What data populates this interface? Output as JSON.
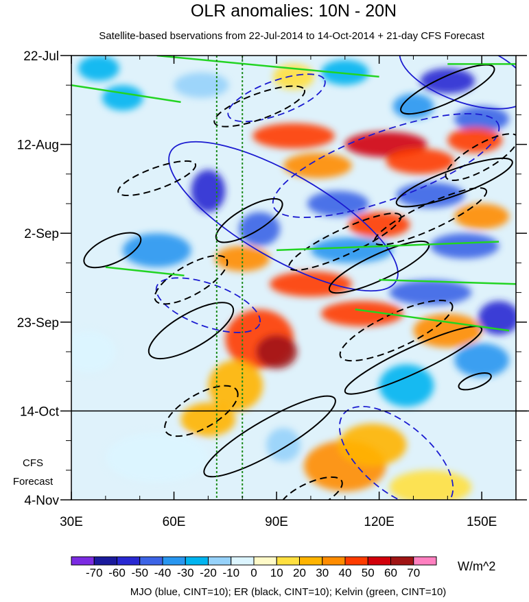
{
  "chart_data": {
    "type": "heatmap",
    "title": "OLR anomalies: 10N - 20N",
    "subtitle": "Satellite-based bservations from 22-Jul-2014 to 14-Oct-2014 + 21-day CFS Forecast",
    "x_ticks": [
      {
        "value": 30,
        "label": "30E"
      },
      {
        "value": 60,
        "label": "60E"
      },
      {
        "value": 90,
        "label": "90E"
      },
      {
        "value": 120,
        "label": "120E"
      },
      {
        "value": 150,
        "label": "150E"
      }
    ],
    "xlim": [
      30,
      160
    ],
    "y_ticks": [
      {
        "value": 0,
        "label": "22-Jul"
      },
      {
        "value": 21,
        "label": "12-Aug"
      },
      {
        "value": 42,
        "label": "2-Sep"
      },
      {
        "value": 63,
        "label": "23-Sep"
      },
      {
        "value": 84,
        "label": "14-Oct"
      },
      {
        "value": 105,
        "label": "4-Nov"
      }
    ],
    "ylim_days": [
      0,
      105
    ],
    "forecast_start_day": 84,
    "forecast_label_1": "CFS",
    "forecast_label_2": "Forecast",
    "reference_lines_lon": [
      72.5,
      80
    ],
    "colorbar": {
      "colors": [
        "#7b2be2",
        "#1a1a9c",
        "#2828d2",
        "#3c64e6",
        "#2896f0",
        "#00b4f0",
        "#96d2fa",
        "#dcf5ff",
        "#fffac8",
        "#ffe040",
        "#ffb400",
        "#ff8c00",
        "#ff3c00",
        "#d2000a",
        "#a01414",
        "#ff80c0"
      ],
      "labels": [
        "-70",
        "-60",
        "-50",
        "-40",
        "-30",
        "-20",
        "-10",
        "0",
        "10",
        "20",
        "30",
        "40",
        "50",
        "60",
        "70"
      ],
      "units": "W/m^2"
    },
    "anomaly_blobs": [
      {
        "lon": 38,
        "day": 3,
        "value": -25,
        "rlon": 6,
        "rday": 3
      },
      {
        "lon": 45,
        "day": 10,
        "value": -30,
        "rlon": 6,
        "rday": 3
      },
      {
        "lon": 68,
        "day": 7,
        "value": -20,
        "rlon": 8,
        "rday": 3
      },
      {
        "lon": 95,
        "day": 5,
        "value": 15,
        "rlon": 6,
        "rday": 3
      },
      {
        "lon": 110,
        "day": 4,
        "value": -30,
        "rlon": 7,
        "rday": 3
      },
      {
        "lon": 140,
        "day": 6,
        "value": -55,
        "rlon": 8,
        "rday": 3
      },
      {
        "lon": 130,
        "day": 12,
        "value": -40,
        "rlon": 6,
        "rday": 3
      },
      {
        "lon": 150,
        "day": 15,
        "value": -45,
        "rlon": 8,
        "rday": 3
      },
      {
        "lon": 95,
        "day": 19,
        "value": 45,
        "rlon": 12,
        "rday": 3
      },
      {
        "lon": 122,
        "day": 21,
        "value": 50,
        "rlon": 12,
        "rday": 3
      },
      {
        "lon": 148,
        "day": 20,
        "value": 40,
        "rlon": 8,
        "rday": 3
      },
      {
        "lon": 102,
        "day": 26,
        "value": 35,
        "rlon": 10,
        "rday": 3
      },
      {
        "lon": 132,
        "day": 25,
        "value": 45,
        "rlon": 10,
        "rday": 3
      },
      {
        "lon": 70,
        "day": 32,
        "value": -55,
        "rlon": 5,
        "rday": 5
      },
      {
        "lon": 85,
        "day": 41,
        "value": -50,
        "rlon": 6,
        "rday": 4
      },
      {
        "lon": 108,
        "day": 35,
        "value": -45,
        "rlon": 9,
        "rday": 3
      },
      {
        "lon": 135,
        "day": 33,
        "value": -45,
        "rlon": 10,
        "rday": 3
      },
      {
        "lon": 120,
        "day": 40,
        "value": 40,
        "rlon": 9,
        "rday": 3
      },
      {
        "lon": 150,
        "day": 38,
        "value": 30,
        "rlon": 8,
        "rday": 3
      },
      {
        "lon": 55,
        "day": 46,
        "value": -35,
        "rlon": 10,
        "rday": 4
      },
      {
        "lon": 80,
        "day": 48,
        "value": 35,
        "rlon": 8,
        "rday": 3
      },
      {
        "lon": 112,
        "day": 46,
        "value": -40,
        "rlon": 12,
        "rday": 3
      },
      {
        "lon": 145,
        "day": 45,
        "value": -45,
        "rlon": 10,
        "rday": 3
      },
      {
        "lon": 100,
        "day": 54,
        "value": 40,
        "rlon": 12,
        "rday": 3
      },
      {
        "lon": 135,
        "day": 56,
        "value": -50,
        "rlon": 12,
        "rday": 3
      },
      {
        "lon": 115,
        "day": 61,
        "value": 45,
        "rlon": 12,
        "rday": 3
      },
      {
        "lon": 140,
        "day": 65,
        "value": 35,
        "rlon": 10,
        "rday": 4
      },
      {
        "lon": 155,
        "day": 62,
        "value": -55,
        "rlon": 6,
        "rday": 4
      },
      {
        "lon": 85,
        "day": 67,
        "value": 45,
        "rlon": 10,
        "rday": 7
      },
      {
        "lon": 90,
        "day": 70,
        "value": 60,
        "rlon": 6,
        "rday": 4
      },
      {
        "lon": 78,
        "day": 78,
        "value": 25,
        "rlon": 8,
        "rday": 6
      },
      {
        "lon": 35,
        "day": 70,
        "value": -10,
        "rlon": 8,
        "rday": 5
      },
      {
        "lon": 150,
        "day": 72,
        "value": -40,
        "rlon": 8,
        "rday": 4
      },
      {
        "lon": 128,
        "day": 78,
        "value": -25,
        "rlon": 8,
        "rday": 5
      },
      {
        "lon": 70,
        "day": 86,
        "value": 25,
        "rlon": 8,
        "rday": 4
      },
      {
        "lon": 110,
        "day": 97,
        "value": 35,
        "rlon": 12,
        "rday": 6
      },
      {
        "lon": 118,
        "day": 92,
        "value": 20,
        "rlon": 10,
        "rday": 5
      },
      {
        "lon": 55,
        "day": 95,
        "value": -10,
        "rlon": 15,
        "rday": 6
      },
      {
        "lon": 92,
        "day": 92,
        "value": -15,
        "rlon": 5,
        "rday": 4
      },
      {
        "lon": 135,
        "day": 102,
        "value": 10,
        "rlon": 12,
        "rday": 4
      }
    ],
    "contours": [
      {
        "kind": "mjo",
        "style": "solid",
        "lon": 92,
        "day": 38,
        "rlon": 38,
        "rday": 10,
        "angle": 30
      },
      {
        "kind": "mjo",
        "style": "solid",
        "lon": 145,
        "day": 4,
        "rlon": 20,
        "rday": 7,
        "angle": 20
      },
      {
        "kind": "mjo",
        "style": "dashed",
        "lon": 122,
        "day": 26,
        "rlon": 35,
        "rday": 8,
        "angle": -20
      },
      {
        "kind": "mjo",
        "style": "dashed",
        "lon": 70,
        "day": 59,
        "rlon": 16,
        "rday": 5,
        "angle": 20
      },
      {
        "kind": "mjo",
        "style": "dashed",
        "lon": 90,
        "day": 10,
        "rlon": 15,
        "rday": 4,
        "angle": -20
      },
      {
        "kind": "mjo",
        "style": "dashed",
        "lon": 125,
        "day": 95,
        "rlon": 20,
        "rday": 8,
        "angle": 40
      },
      {
        "kind": "er",
        "style": "dashed",
        "lon": 55,
        "day": 29,
        "rlon": 12,
        "rday": 2.5,
        "angle": -20
      },
      {
        "kind": "er",
        "style": "dashed",
        "lon": 65,
        "day": 53,
        "rlon": 12,
        "rday": 3.5,
        "angle": -30
      },
      {
        "kind": "er",
        "style": "dashed",
        "lon": 68,
        "day": 84,
        "rlon": 12,
        "rday": 4,
        "angle": -30
      },
      {
        "kind": "er",
        "style": "dashed",
        "lon": 85,
        "day": 12,
        "rlon": 14,
        "rday": 3,
        "angle": -20
      },
      {
        "kind": "er",
        "style": "dashed",
        "lon": 110,
        "day": 44,
        "rlon": 18,
        "rday": 3,
        "angle": -25
      },
      {
        "kind": "er",
        "style": "dashed",
        "lon": 150,
        "day": 24,
        "rlon": 12,
        "rday": 3,
        "angle": -30
      },
      {
        "kind": "er",
        "style": "dashed",
        "lon": 135,
        "day": 38,
        "rlon": 18,
        "rday": 3,
        "angle": -25
      },
      {
        "kind": "er",
        "style": "dashed",
        "lon": 125,
        "day": 65,
        "rlon": 18,
        "rday": 4,
        "angle": -25
      },
      {
        "kind": "er",
        "style": "dashed",
        "lon": 100,
        "day": 104,
        "rlon": 10,
        "rday": 3,
        "angle": -25
      },
      {
        "kind": "er",
        "style": "solid",
        "lon": 42,
        "day": 46,
        "rlon": 9,
        "rday": 3,
        "angle": -25
      },
      {
        "kind": "er",
        "style": "solid",
        "lon": 82,
        "day": 39,
        "rlon": 11,
        "rday": 3,
        "angle": -30
      },
      {
        "kind": "er",
        "style": "solid",
        "lon": 65,
        "day": 65,
        "rlon": 14,
        "rday": 4,
        "angle": -30
      },
      {
        "kind": "er",
        "style": "solid",
        "lon": 88,
        "day": 90,
        "rlon": 22,
        "rday": 4,
        "angle": -30
      },
      {
        "kind": "er",
        "style": "solid",
        "lon": 120,
        "day": 50,
        "rlon": 16,
        "rday": 3,
        "angle": -25
      },
      {
        "kind": "er",
        "style": "solid",
        "lon": 140,
        "day": 8,
        "rlon": 15,
        "rday": 3,
        "angle": -25
      },
      {
        "kind": "er",
        "style": "solid",
        "lon": 142,
        "day": 30,
        "rlon": 18,
        "rday": 3,
        "angle": -20
      },
      {
        "kind": "er",
        "style": "solid",
        "lon": 130,
        "day": 72,
        "rlon": 22,
        "rday": 3,
        "angle": -25
      },
      {
        "kind": "er",
        "style": "solid",
        "lon": 148,
        "day": 77,
        "rlon": 5,
        "rday": 1.5,
        "angle": -20
      }
    ],
    "kelvin_lines": [
      {
        "lon1": 55,
        "day1": 0,
        "lon2": 120,
        "day2": 5
      },
      {
        "lon1": 30,
        "day1": 7,
        "lon2": 62,
        "day2": 11
      },
      {
        "lon1": 40,
        "day1": 50,
        "lon2": 63,
        "day2": 52
      },
      {
        "lon1": 90,
        "day1": 46,
        "lon2": 155,
        "day2": 44
      },
      {
        "lon1": 120,
        "day1": 53,
        "lon2": 160,
        "day2": 54
      },
      {
        "lon1": 113,
        "day1": 60,
        "lon2": 158,
        "day2": 65
      },
      {
        "lon1": 140,
        "day1": 2,
        "lon2": 160,
        "day2": 2
      }
    ],
    "legend_text": "MJO (blue, CINT=10); ER (black, CINT=10); Kelvin (green, CINT=10)"
  }
}
